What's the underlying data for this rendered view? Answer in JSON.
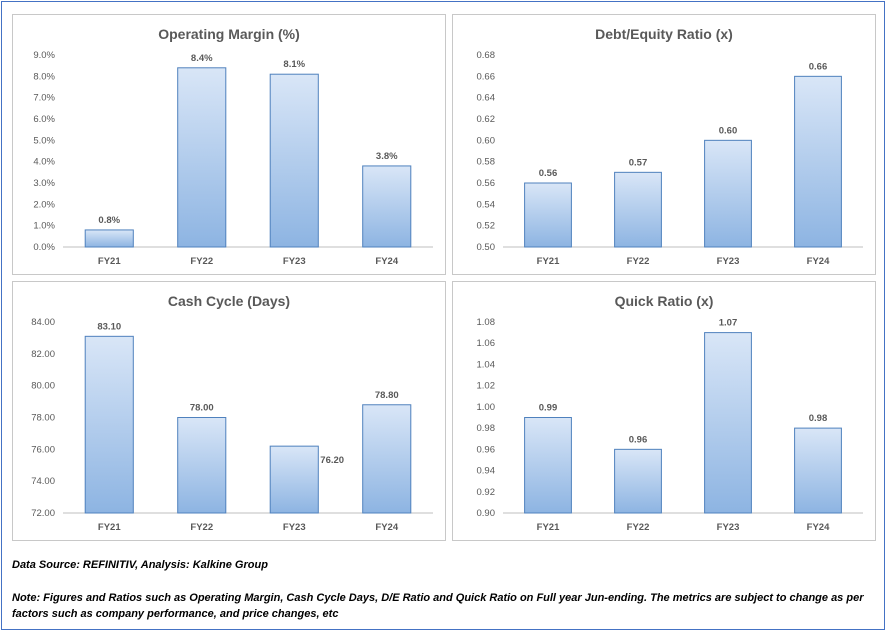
{
  "colors": {
    "bar_top": "#d9e6f7",
    "bar_bottom": "#8db4e2",
    "bar_stroke": "#4f81bd",
    "text": "#595959",
    "title": "#595959",
    "axis": "#bfbfbf"
  },
  "chart_data": [
    {
      "id": "operating-margin",
      "type": "bar",
      "title": "Operating Margin (%)",
      "categories": [
        "FY21",
        "FY22",
        "FY23",
        "FY24"
      ],
      "values": [
        0.8,
        8.4,
        8.1,
        3.8
      ],
      "value_labels": [
        "0.8%",
        "8.4%",
        "8.1%",
        "3.8%"
      ],
      "yticks": [
        "0.0%",
        "1.0%",
        "2.0%",
        "3.0%",
        "4.0%",
        "5.0%",
        "6.0%",
        "7.0%",
        "8.0%",
        "9.0%"
      ],
      "ylim": [
        0,
        9
      ],
      "grid": false
    },
    {
      "id": "debt-equity",
      "type": "bar",
      "title": "Debt/Equity Ratio (x)",
      "categories": [
        "FY21",
        "FY22",
        "FY23",
        "FY24"
      ],
      "values": [
        0.56,
        0.57,
        0.6,
        0.66
      ],
      "value_labels": [
        "0.56",
        "0.57",
        "0.60",
        "0.66"
      ],
      "yticks": [
        "0.50",
        "0.52",
        "0.54",
        "0.56",
        "0.58",
        "0.60",
        "0.62",
        "0.64",
        "0.66",
        "0.68"
      ],
      "ylim": [
        0.5,
        0.68
      ],
      "grid": false
    },
    {
      "id": "cash-cycle",
      "type": "bar",
      "title": "Cash Cycle (Days)",
      "categories": [
        "FY21",
        "FY22",
        "FY23",
        "FY24"
      ],
      "values": [
        83.1,
        78.0,
        76.2,
        78.8
      ],
      "value_labels": [
        "83.10",
        "78.00",
        "76.20",
        "78.80"
      ],
      "yticks": [
        "72.00",
        "74.00",
        "76.00",
        "78.00",
        "80.00",
        "82.00",
        "84.00"
      ],
      "ylim": [
        72,
        84
      ],
      "grid": false
    },
    {
      "id": "quick-ratio",
      "type": "bar",
      "title": "Quick Ratio (x)",
      "categories": [
        "FY21",
        "FY22",
        "FY23",
        "FY24"
      ],
      "values": [
        0.99,
        0.96,
        1.07,
        0.98
      ],
      "value_labels": [
        "0.99",
        "0.96",
        "1.07",
        "0.98"
      ],
      "yticks": [
        "0.90",
        "0.92",
        "0.94",
        "0.96",
        "0.98",
        "1.00",
        "1.02",
        "1.04",
        "1.06",
        "1.08"
      ],
      "ylim": [
        0.9,
        1.08
      ],
      "grid": false
    }
  ],
  "notes": {
    "source": "Data Source: REFINITIV, Analysis: Kalkine Group",
    "disclaimer": "Note: Figures and Ratios such as Operating Margin, Cash Cycle Days, D/E Ratio and Quick Ratio on Full  year Jun-ending. The metrics are subject to change as per factors such as company performance, and price changes, etc"
  }
}
